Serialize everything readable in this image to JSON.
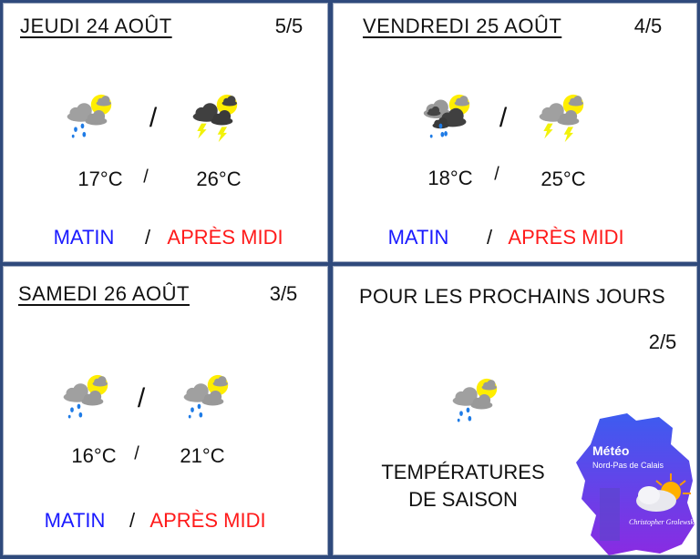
{
  "days": [
    {
      "title": "JEUDI 24 AOÛT",
      "rating": "5/5",
      "morning_icon": "rain-sun",
      "afternoon_icon": "storm-dark-sun",
      "morning_temp": "17°C",
      "afternoon_temp": "26°C",
      "separator": "/",
      "morning_label": "MATIN",
      "afternoon_label": "APRÈS MIDI"
    },
    {
      "title": "VENDREDI 25 AOÛT",
      "rating": "4/5",
      "morning_icon": "rain-storm-sun",
      "afternoon_icon": "storm-gray-sun",
      "morning_temp": "18°C",
      "afternoon_temp": "25°C",
      "separator": "/",
      "morning_label": "MATIN",
      "afternoon_label": "APRÈS MIDI"
    },
    {
      "title": "SAMEDI 26 AOÛT",
      "rating": "3/5",
      "morning_icon": "rain-sun",
      "afternoon_icon": "rain-sun",
      "morning_temp": "16°C",
      "afternoon_temp": "21°C",
      "separator": "/",
      "morning_label": "MATIN",
      "afternoon_label": "APRÈS MIDI"
    }
  ],
  "outlook": {
    "title": "POUR LES PROCHAINS JOURS",
    "rating": "2/5",
    "icon": "rain-sun",
    "line1": "TEMPÉRATURES",
    "line2": "DE SAISON"
  },
  "logo": {
    "title": "Météo",
    "subtitle": "Nord-Pas de Calais",
    "author": "Christopher Grolewski"
  },
  "colors": {
    "background": "#2f4a7c",
    "morning": "#1a1aff",
    "afternoon": "#ff1a1a",
    "sun": "#ffee00",
    "rain": "#1e7be6",
    "lightning": "#f2f20a"
  }
}
